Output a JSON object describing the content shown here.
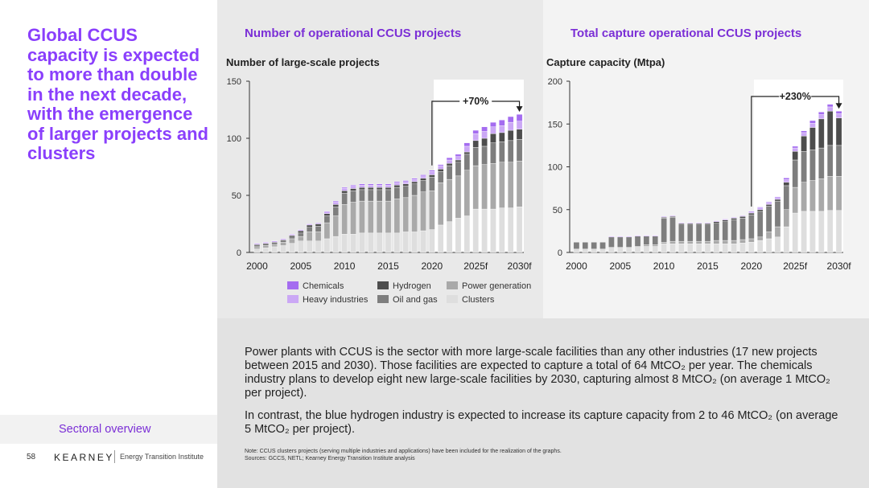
{
  "headline": "Global CCUS capacity is expected to more than double in the next decade, with the emergence of larger projects and clusters",
  "footer": {
    "section_label": "Sectoral overview",
    "page_number": "58",
    "logo_text": "KEARNEY",
    "logo_subtitle": "Energy Transition Institute"
  },
  "colors": {
    "accent": "#8a3ffc",
    "chemicals": "#a46cf0",
    "heavy_industries": "#cba8f5",
    "hydrogen": "#4d4d4d",
    "oil_and_gas": "#7e7e7e",
    "power_generation": "#a9a9a9",
    "clusters": "#dedede"
  },
  "legend": [
    {
      "name": "Chemicals",
      "color_key": "chemicals"
    },
    {
      "name": "Hydrogen",
      "color_key": "hydrogen"
    },
    {
      "name": "Power generation",
      "color_key": "power_generation"
    },
    {
      "name": "Heavy industries",
      "color_key": "heavy_industries"
    },
    {
      "name": "Oil and gas",
      "color_key": "oil_and_gas"
    },
    {
      "name": "Clusters",
      "color_key": "clusters"
    }
  ],
  "chart_data": [
    {
      "type": "bar",
      "stacked": true,
      "title": "Number of operational CCUS projects",
      "ylabel": "Number of large-scale projects",
      "ylim": [
        0,
        150
      ],
      "yticks": [
        0,
        50,
        100,
        150
      ],
      "xtick_labels": [
        "2000",
        "2005",
        "2010",
        "2015",
        "2020",
        "2025f",
        "2030f"
      ],
      "categories": [
        "2000",
        "2001",
        "2002",
        "2003",
        "2004",
        "2005",
        "2006",
        "2007",
        "2008",
        "2009",
        "2010",
        "2011",
        "2012",
        "2013",
        "2014",
        "2015",
        "2016",
        "2017",
        "2018",
        "2019",
        "2020",
        "2021",
        "2022",
        "2023",
        "2024",
        "2025",
        "2026",
        "2027",
        "2028",
        "2029",
        "2030"
      ],
      "annotation": "+70%",
      "highlight_from": "2021",
      "series": [
        {
          "name": "Clusters",
          "values": [
            3,
            4,
            5,
            6,
            8,
            10,
            10,
            10,
            12,
            14,
            16,
            16,
            17,
            17,
            17,
            17,
            17,
            18,
            18,
            19,
            20,
            24,
            27,
            30,
            32,
            38,
            38,
            38,
            39,
            39,
            40
          ]
        },
        {
          "name": "Power generation",
          "values": [
            2,
            2,
            2,
            3,
            4,
            4,
            8,
            8,
            14,
            18,
            26,
            28,
            28,
            28,
            28,
            28,
            30,
            30,
            32,
            34,
            34,
            37,
            37,
            37,
            40,
            38,
            39,
            40,
            40,
            40,
            40
          ]
        },
        {
          "name": "Oil and gas",
          "values": [
            2,
            2,
            2,
            2,
            3,
            3,
            4,
            5,
            6,
            8,
            10,
            10,
            10,
            10,
            10,
            10,
            10,
            10,
            10,
            10,
            12,
            10,
            12,
            12,
            14,
            16,
            16,
            18,
            18,
            19,
            19
          ]
        },
        {
          "name": "Hydrogen",
          "values": [
            0,
            0,
            0,
            0,
            0,
            2,
            2,
            2,
            2,
            2,
            2,
            2,
            2,
            2,
            2,
            2,
            2,
            2,
            2,
            2,
            2,
            2,
            2,
            2,
            2,
            6,
            7,
            8,
            8,
            9,
            9
          ]
        },
        {
          "name": "Heavy industries",
          "values": [
            1,
            1,
            1,
            1,
            1,
            1,
            1,
            1,
            2,
            2,
            2,
            2,
            2,
            2,
            2,
            2,
            2,
            2,
            2,
            2,
            3,
            3,
            3,
            3,
            5,
            6,
            6,
            6,
            6,
            7,
            7
          ]
        },
        {
          "name": "Chemicals",
          "values": [
            0,
            0,
            0,
            0,
            0,
            0,
            0,
            0,
            0,
            1,
            1,
            1,
            1,
            1,
            1,
            1,
            1,
            1,
            1,
            1,
            1,
            1,
            2,
            2,
            3,
            3,
            4,
            4,
            5,
            5,
            6
          ]
        }
      ]
    },
    {
      "type": "bar",
      "stacked": true,
      "title": "Total capture operational CCUS projects",
      "ylabel": "Capture capacity (Mtpa)",
      "ylim": [
        0,
        200
      ],
      "yticks": [
        0,
        50,
        100,
        150,
        200
      ],
      "xtick_labels": [
        "2000",
        "2005",
        "2010",
        "2015",
        "2020",
        "2025f",
        "2030f"
      ],
      "categories": [
        "2000",
        "2001",
        "2002",
        "2003",
        "2004",
        "2005",
        "2006",
        "2007",
        "2008",
        "2009",
        "2010",
        "2011",
        "2012",
        "2013",
        "2014",
        "2015",
        "2016",
        "2017",
        "2018",
        "2019",
        "2020",
        "2021",
        "2022",
        "2023",
        "2024",
        "2025",
        "2026",
        "2027",
        "2028",
        "2029",
        "2030"
      ],
      "annotation": "+230%",
      "highlight_from": "2021",
      "series": [
        {
          "name": "Clusters",
          "values": [
            4,
            4,
            4,
            4,
            6,
            6,
            6,
            7,
            7,
            7,
            10,
            10,
            10,
            10,
            10,
            10,
            10,
            10,
            10,
            11,
            12,
            14,
            16,
            18,
            30,
            46,
            48,
            48,
            48,
            49,
            49
          ]
        },
        {
          "name": "Power generation",
          "values": [
            0,
            0,
            0,
            0,
            0,
            0,
            0,
            0,
            2,
            2,
            2,
            3,
            3,
            3,
            3,
            3,
            4,
            4,
            4,
            4,
            4,
            4,
            8,
            12,
            20,
            30,
            34,
            36,
            38,
            40,
            40
          ]
        },
        {
          "name": "Oil and gas",
          "values": [
            8,
            8,
            8,
            8,
            12,
            12,
            12,
            12,
            10,
            10,
            28,
            28,
            20,
            20,
            20,
            20,
            20,
            22,
            24,
            25,
            28,
            30,
            30,
            30,
            28,
            32,
            36,
            36,
            36,
            36,
            36
          ]
        },
        {
          "name": "Hydrogen",
          "values": [
            0,
            0,
            0,
            0,
            0,
            0,
            0,
            0,
            0,
            0,
            1,
            1,
            1,
            1,
            1,
            1,
            2,
            2,
            2,
            2,
            2,
            2,
            2,
            2,
            4,
            10,
            18,
            26,
            34,
            40,
            32
          ]
        },
        {
          "name": "Heavy industries",
          "values": [
            0,
            0,
            0,
            0,
            1,
            1,
            1,
            1,
            1,
            1,
            1,
            1,
            1,
            1,
            1,
            1,
            1,
            1,
            1,
            1,
            1,
            2,
            2,
            2,
            3,
            4,
            4,
            5,
            5,
            5,
            5
          ]
        },
        {
          "name": "Chemicals",
          "values": [
            0,
            0,
            0,
            0,
            0,
            0,
            0,
            0,
            0,
            0,
            0,
            0,
            0,
            0,
            0,
            0,
            0,
            0,
            0,
            0,
            1,
            1,
            1,
            1,
            2,
            2,
            2,
            3,
            3,
            3,
            3
          ]
        }
      ]
    }
  ],
  "paragraphs": [
    "Power plants with CCUS is the sector with more large-scale facilities than any other industries (17 new projects between 2015 and 2030). Those facilities are expected to capture a total of 64 MtCO₂ per year. The chemicals industry plans to develop eight new large-scale facilities by 2030, capturing almost 8 MtCO₂ (on average 1 MtCO₂ per project).",
    "In contrast, the blue hydrogen industry is expected to increase its capture capacity from 2 to 46 MtCO₂ (on average 5 MtCO₂ per project)."
  ],
  "notes": {
    "note": "Note: CCUS clusters projects (serving multiple industries and applications) have been included for the realization of the graphs.",
    "sources": "Sources: GCCS, NETL; Kearney Energy Transition Institute analysis"
  }
}
